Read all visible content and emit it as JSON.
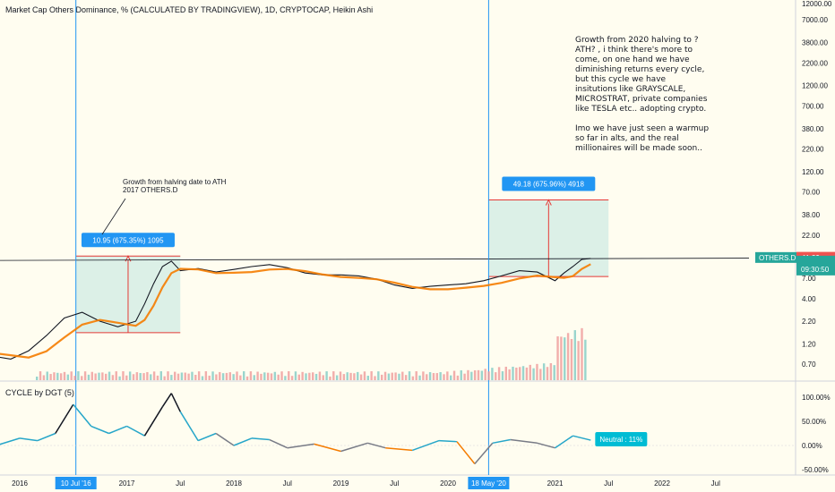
{
  "chart_data": {
    "type": "line",
    "title": "Market Cap Others Dominance, % (CALCULATED BY TRADINGVIEW), 1D, CRYPTOCAP, Heikin Ashi",
    "y_scale": "log",
    "y_ticks": [
      "7000.00",
      "3800.00",
      "2200.00",
      "1200.00",
      "700.00",
      "380.00",
      "220.00",
      "120.00",
      "70.00",
      "38.00",
      "22.00",
      "11.89",
      "7.00",
      "4.00",
      "2.20",
      "1.20",
      "0.70"
    ],
    "x_ticks": [
      "2016",
      "2017",
      "Jul",
      "2018",
      "Jul",
      "2019",
      "Jul",
      "2020",
      "2021",
      "Jul",
      "2022",
      "Jul"
    ],
    "top_tick": "12000.00",
    "markers": [
      {
        "label": "10 Jul '16",
        "x": "2016-07-10"
      },
      {
        "label": "18 May '20",
        "x": "2020-05-18"
      }
    ],
    "series": [
      {
        "name": "OTHERS.D",
        "last": "OTHERS.D · 11.82",
        "countdown": "09:30:50"
      }
    ],
    "price_tag": "11.89",
    "series_points": [
      [
        "2015-06",
        1.2
      ],
      [
        "2015-09",
        0.9
      ],
      [
        "2015-12",
        0.8
      ],
      [
        "2016-02",
        1.0
      ],
      [
        "2016-04",
        1.5
      ],
      [
        "2016-06",
        2.4
      ],
      [
        "2016-08",
        2.8
      ],
      [
        "2016-10",
        2.2
      ],
      [
        "2016-12",
        1.9
      ],
      [
        "2017-02",
        2.2
      ],
      [
        "2017-03",
        3.5
      ],
      [
        "2017-04",
        6.0
      ],
      [
        "2017-05",
        9.5
      ],
      [
        "2017-06",
        11.0
      ],
      [
        "2017-07",
        8.5
      ],
      [
        "2017-09",
        9.0
      ],
      [
        "2017-11",
        8.2
      ],
      [
        "2018-01",
        8.8
      ],
      [
        "2018-03",
        9.5
      ],
      [
        "2018-05",
        10.0
      ],
      [
        "2018-07",
        9.2
      ],
      [
        "2018-09",
        8.0
      ],
      [
        "2018-11",
        7.6
      ],
      [
        "2019-01",
        7.6
      ],
      [
        "2019-03",
        7.4
      ],
      [
        "2019-05",
        6.8
      ],
      [
        "2019-07",
        5.8
      ],
      [
        "2019-09",
        5.3
      ],
      [
        "2019-11",
        5.6
      ],
      [
        "2020-01",
        5.8
      ],
      [
        "2020-03",
        6.0
      ],
      [
        "2020-05",
        6.5
      ],
      [
        "2020-07",
        7.4
      ],
      [
        "2020-09",
        8.5
      ],
      [
        "2020-11",
        8.2
      ],
      [
        "2021-01",
        6.5
      ],
      [
        "2021-02",
        8.0
      ],
      [
        "2021-03",
        9.5
      ],
      [
        "2021-04",
        11.5
      ],
      [
        "2021-05",
        11.82
      ]
    ],
    "measure_boxes": [
      {
        "label": "10.95 (675.35%) 1095",
        "x0": "2016-07-10",
        "x1": "2017-07-01",
        "y0": 1.62,
        "y1": 12.57
      },
      {
        "label": "49.18 (675.96%) 4918",
        "x0": "2020-05-18",
        "x1": "2021-07-01",
        "y0": 7.28,
        "y1": 56.46
      }
    ],
    "annotation_2017": "Growth from halving date to ATH\n2017 OTHERS.D",
    "note": "Growth from 2020 halving to ? ATH? , i think there's more to come, on one hand we have diminishing returns every cycle, but this cycle we have insitutions like GRAYSCALE, MICROSTRAT, private companies like TESLA etc.. adopting crypto.\n\nImo we have just seen a warmup so far in alts, and the real millionaires will be made soon..",
    "indicator": {
      "title": "CYCLE by DGT (5)",
      "y_ticks": [
        "100.00%",
        "50.00%",
        "0.00%",
        "-50.00%"
      ],
      "label": "Neutral : 11%",
      "points": [
        [
          "2015-06",
          0
        ],
        [
          "2015-10",
          -2
        ],
        [
          "2016-01",
          15
        ],
        [
          "2016-03",
          10
        ],
        [
          "2016-05",
          25
        ],
        [
          "2016-07",
          85
        ],
        [
          "2016-09",
          40
        ],
        [
          "2016-11",
          25
        ],
        [
          "2017-01",
          40
        ],
        [
          "2017-03",
          20
        ],
        [
          "2017-05",
          80
        ],
        [
          "2017-06",
          108
        ],
        [
          "2017-07",
          70
        ],
        [
          "2017-09",
          10
        ],
        [
          "2017-11",
          25
        ],
        [
          "2018-01",
          0
        ],
        [
          "2018-03",
          15
        ],
        [
          "2018-05",
          12
        ],
        [
          "2018-07",
          -5
        ],
        [
          "2018-10",
          3
        ],
        [
          "2019-01",
          -12
        ],
        [
          "2019-04",
          5
        ],
        [
          "2019-06",
          -5
        ],
        [
          "2019-09",
          -10
        ],
        [
          "2019-12",
          10
        ],
        [
          "2020-02",
          8
        ],
        [
          "2020-04",
          -38
        ],
        [
          "2020-06",
          5
        ],
        [
          "2020-08",
          12
        ],
        [
          "2020-11",
          5
        ],
        [
          "2021-01",
          -5
        ],
        [
          "2021-03",
          20
        ],
        [
          "2021-05",
          11
        ]
      ]
    },
    "colors": {
      "series": "#131722",
      "ma_orange": "#f57c00",
      "box_fill": "#b2dfdb",
      "box_border": "#e53935",
      "measure_label": "#2196f3",
      "accent_tag": "#26a69a",
      "price_tag": "#ef5350",
      "marker_line": "#2196f3"
    }
  }
}
